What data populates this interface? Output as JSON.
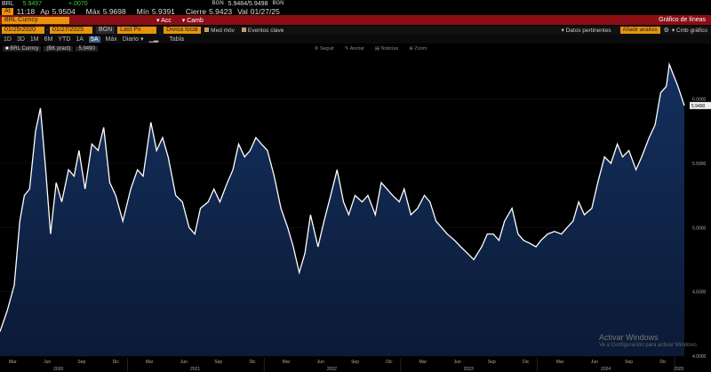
{
  "quote_bar": {
    "ticker": "BRL",
    "last": "5.9497",
    "change": "+.0070",
    "bidask_label": "BGN",
    "bidask": "5.9484/5.9498",
    "bidask_label2": "BGN"
  },
  "quote_detail": {
    "at_label": "At",
    "time": "11:18",
    "open_label": "Ap",
    "open": "5.9504",
    "high_label": "Máx",
    "high": "5.9698",
    "low_label": "Mín",
    "low": "5.9391",
    "close_label": "Cierre",
    "close": "5.9423",
    "vol_label": "Val",
    "date": "01/27/25"
  },
  "title_bar": {
    "security": "BRL Curncy",
    "actions_label": "Acc",
    "camb_label": "Camb",
    "chart_title": "Gráfico de líneas"
  },
  "control_bar": {
    "start_date": "01/25/2020",
    "end_date": "01/27/2025",
    "source": "BGN",
    "field": "Last Px",
    "currency": "Divisa local",
    "moving_avg": "Med móv",
    "key_events": "Eventos clave",
    "data_label": "Datos pertinentes",
    "annotation": "Añadir análisis",
    "chart_edit": "Cmb gráfico"
  },
  "range_bar": {
    "ranges": [
      "1D",
      "3D",
      "1M",
      "6M",
      "YTD",
      "1A",
      "5A",
      "Máx"
    ],
    "selected_range": "5A",
    "period": "Diario",
    "table_label": "Tabla"
  },
  "legend": {
    "item1": "BRL Curncy",
    "item2": "(BK pract)",
    "last_badge": "5.9490"
  },
  "toolbar_tools": [
    "Seguir",
    "Anotar",
    "Noticias",
    "Zoom"
  ],
  "watermark": {
    "title": "Activar Windows",
    "subtitle": "Ve a Configuración para activar Windows."
  },
  "colors": {
    "area_fill": "#0f1f40",
    "line": "#ffffff",
    "header_red": "#8b0e15",
    "amber": "#f0a020"
  },
  "chart_data": {
    "type": "area",
    "title": "",
    "xlabel": "",
    "ylabel": "",
    "ylim": [
      4.0,
      6.35
    ],
    "y_ticks": [
      "6.0000",
      "5.5000",
      "5.0000",
      "4.5000",
      "4.0000"
    ],
    "month_ticks": [
      "Mar",
      "Jun",
      "Sep",
      "Dic",
      "Mar",
      "Jun",
      "Sep",
      "Dic",
      "Mar",
      "Jun",
      "Sep",
      "Dic",
      "Mar",
      "Jun",
      "Sep",
      "Dic",
      "Mar",
      "Jun",
      "Sep",
      "Dic"
    ],
    "year_ticks": [
      "2020",
      "2021",
      "2022",
      "2023",
      "2024",
      "2025"
    ],
    "series": [
      {
        "values": [
          [
            "2020-01-27",
            4.19
          ],
          [
            "2020-02-15",
            4.35
          ],
          [
            "2020-03-05",
            4.55
          ],
          [
            "2020-03-20",
            5.05
          ],
          [
            "2020-04-01",
            5.25
          ],
          [
            "2020-04-15",
            5.3
          ],
          [
            "2020-05-01",
            5.75
          ],
          [
            "2020-05-14",
            5.93
          ],
          [
            "2020-05-28",
            5.45
          ],
          [
            "2020-06-10",
            4.95
          ],
          [
            "2020-06-25",
            5.35
          ],
          [
            "2020-07-10",
            5.2
          ],
          [
            "2020-07-28",
            5.45
          ],
          [
            "2020-08-12",
            5.4
          ],
          [
            "2020-08-25",
            5.6
          ],
          [
            "2020-09-10",
            5.3
          ],
          [
            "2020-09-28",
            5.65
          ],
          [
            "2020-10-15",
            5.6
          ],
          [
            "2020-10-30",
            5.78
          ],
          [
            "2020-11-15",
            5.35
          ],
          [
            "2020-12-01",
            5.25
          ],
          [
            "2020-12-20",
            5.05
          ],
          [
            "2021-01-10",
            5.3
          ],
          [
            "2021-01-28",
            5.45
          ],
          [
            "2021-02-12",
            5.4
          ],
          [
            "2021-03-05",
            5.82
          ],
          [
            "2021-03-20",
            5.6
          ],
          [
            "2021-04-05",
            5.7
          ],
          [
            "2021-04-20",
            5.55
          ],
          [
            "2021-05-10",
            5.25
          ],
          [
            "2021-05-28",
            5.2
          ],
          [
            "2021-06-15",
            5.0
          ],
          [
            "2021-06-30",
            4.95
          ],
          [
            "2021-07-15",
            5.15
          ],
          [
            "2021-08-05",
            5.2
          ],
          [
            "2021-08-20",
            5.3
          ],
          [
            "2021-09-05",
            5.2
          ],
          [
            "2021-09-25",
            5.35
          ],
          [
            "2021-10-10",
            5.45
          ],
          [
            "2021-10-25",
            5.65
          ],
          [
            "2021-11-10",
            5.55
          ],
          [
            "2021-11-25",
            5.6
          ],
          [
            "2021-12-10",
            5.7
          ],
          [
            "2021-12-25",
            5.65
          ],
          [
            "2022-01-10",
            5.6
          ],
          [
            "2022-01-28",
            5.4
          ],
          [
            "2022-02-15",
            5.15
          ],
          [
            "2022-03-05",
            5.0
          ],
          [
            "2022-03-20",
            4.85
          ],
          [
            "2022-04-05",
            4.65
          ],
          [
            "2022-04-20",
            4.8
          ],
          [
            "2022-05-05",
            5.1
          ],
          [
            "2022-05-25",
            4.85
          ],
          [
            "2022-06-10",
            5.05
          ],
          [
            "2022-06-28",
            5.25
          ],
          [
            "2022-07-15",
            5.45
          ],
          [
            "2022-08-01",
            5.2
          ],
          [
            "2022-08-15",
            5.1
          ],
          [
            "2022-09-01",
            5.25
          ],
          [
            "2022-09-20",
            5.2
          ],
          [
            "2022-10-05",
            5.25
          ],
          [
            "2022-10-25",
            5.1
          ],
          [
            "2022-11-10",
            5.35
          ],
          [
            "2022-11-25",
            5.3
          ],
          [
            "2022-12-10",
            5.25
          ],
          [
            "2022-12-28",
            5.2
          ],
          [
            "2023-01-10",
            5.3
          ],
          [
            "2023-01-28",
            5.1
          ],
          [
            "2023-02-15",
            5.15
          ],
          [
            "2023-03-05",
            5.25
          ],
          [
            "2023-03-20",
            5.2
          ],
          [
            "2023-04-05",
            5.05
          ],
          [
            "2023-04-20",
            5.0
          ],
          [
            "2023-05-05",
            4.95
          ],
          [
            "2023-05-25",
            4.9
          ],
          [
            "2023-06-10",
            4.85
          ],
          [
            "2023-06-28",
            4.8
          ],
          [
            "2023-07-15",
            4.75
          ],
          [
            "2023-08-05",
            4.85
          ],
          [
            "2023-08-20",
            4.95
          ],
          [
            "2023-09-05",
            4.95
          ],
          [
            "2023-09-20",
            4.9
          ],
          [
            "2023-10-05",
            5.05
          ],
          [
            "2023-10-25",
            5.15
          ],
          [
            "2023-11-10",
            4.95
          ],
          [
            "2023-11-25",
            4.9
          ],
          [
            "2023-12-10",
            4.88
          ],
          [
            "2023-12-28",
            4.85
          ],
          [
            "2024-01-10",
            4.9
          ],
          [
            "2024-01-28",
            4.95
          ],
          [
            "2024-02-15",
            4.97
          ],
          [
            "2024-03-05",
            4.95
          ],
          [
            "2024-03-20",
            5.0
          ],
          [
            "2024-04-05",
            5.05
          ],
          [
            "2024-04-20",
            5.2
          ],
          [
            "2024-05-05",
            5.1
          ],
          [
            "2024-05-25",
            5.15
          ],
          [
            "2024-06-10",
            5.35
          ],
          [
            "2024-06-28",
            5.55
          ],
          [
            "2024-07-15",
            5.5
          ],
          [
            "2024-08-01",
            5.65
          ],
          [
            "2024-08-15",
            5.55
          ],
          [
            "2024-09-01",
            5.6
          ],
          [
            "2024-09-20",
            5.45
          ],
          [
            "2024-10-05",
            5.55
          ],
          [
            "2024-10-25",
            5.7
          ],
          [
            "2024-11-10",
            5.8
          ],
          [
            "2024-11-25",
            6.05
          ],
          [
            "2024-12-10",
            6.1
          ],
          [
            "2024-12-18",
            6.27
          ],
          [
            "2024-12-30",
            6.18
          ],
          [
            "2025-01-10",
            6.1
          ],
          [
            "2025-01-27",
            5.95
          ]
        ]
      }
    ]
  }
}
